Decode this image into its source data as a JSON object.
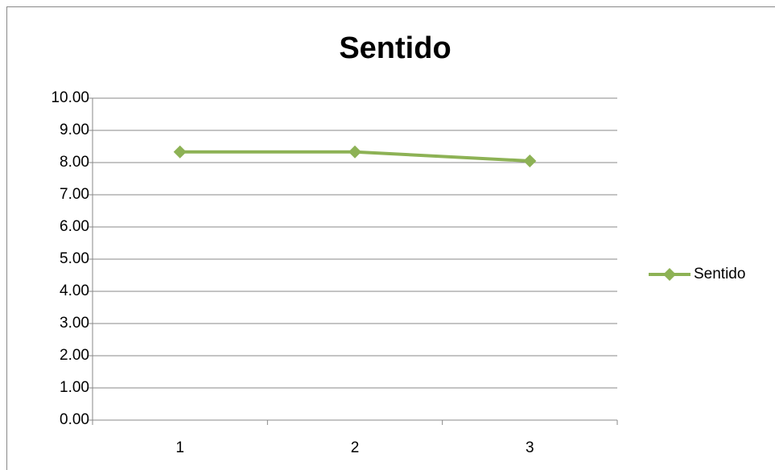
{
  "chart_data": {
    "type": "line",
    "title": "Sentido",
    "categories": [
      "1",
      "2",
      "3"
    ],
    "series": [
      {
        "name": "Sentido",
        "color": "#8db255",
        "values": [
          8.33,
          8.33,
          8.05
        ]
      }
    ],
    "ylim": [
      0,
      10
    ],
    "yticks": [
      {
        "value": 0,
        "label": "0.00"
      },
      {
        "value": 1,
        "label": "1.00"
      },
      {
        "value": 2,
        "label": "2.00"
      },
      {
        "value": 3,
        "label": "3.00"
      },
      {
        "value": 4,
        "label": "4.00"
      },
      {
        "value": 5,
        "label": "5.00"
      },
      {
        "value": 6,
        "label": "6.00"
      },
      {
        "value": 7,
        "label": "7.00"
      },
      {
        "value": 8,
        "label": "8.00"
      },
      {
        "value": 9,
        "label": "9.00"
      },
      {
        "value": 10,
        "label": "10.00"
      }
    ],
    "grid": true,
    "legend": "right"
  }
}
